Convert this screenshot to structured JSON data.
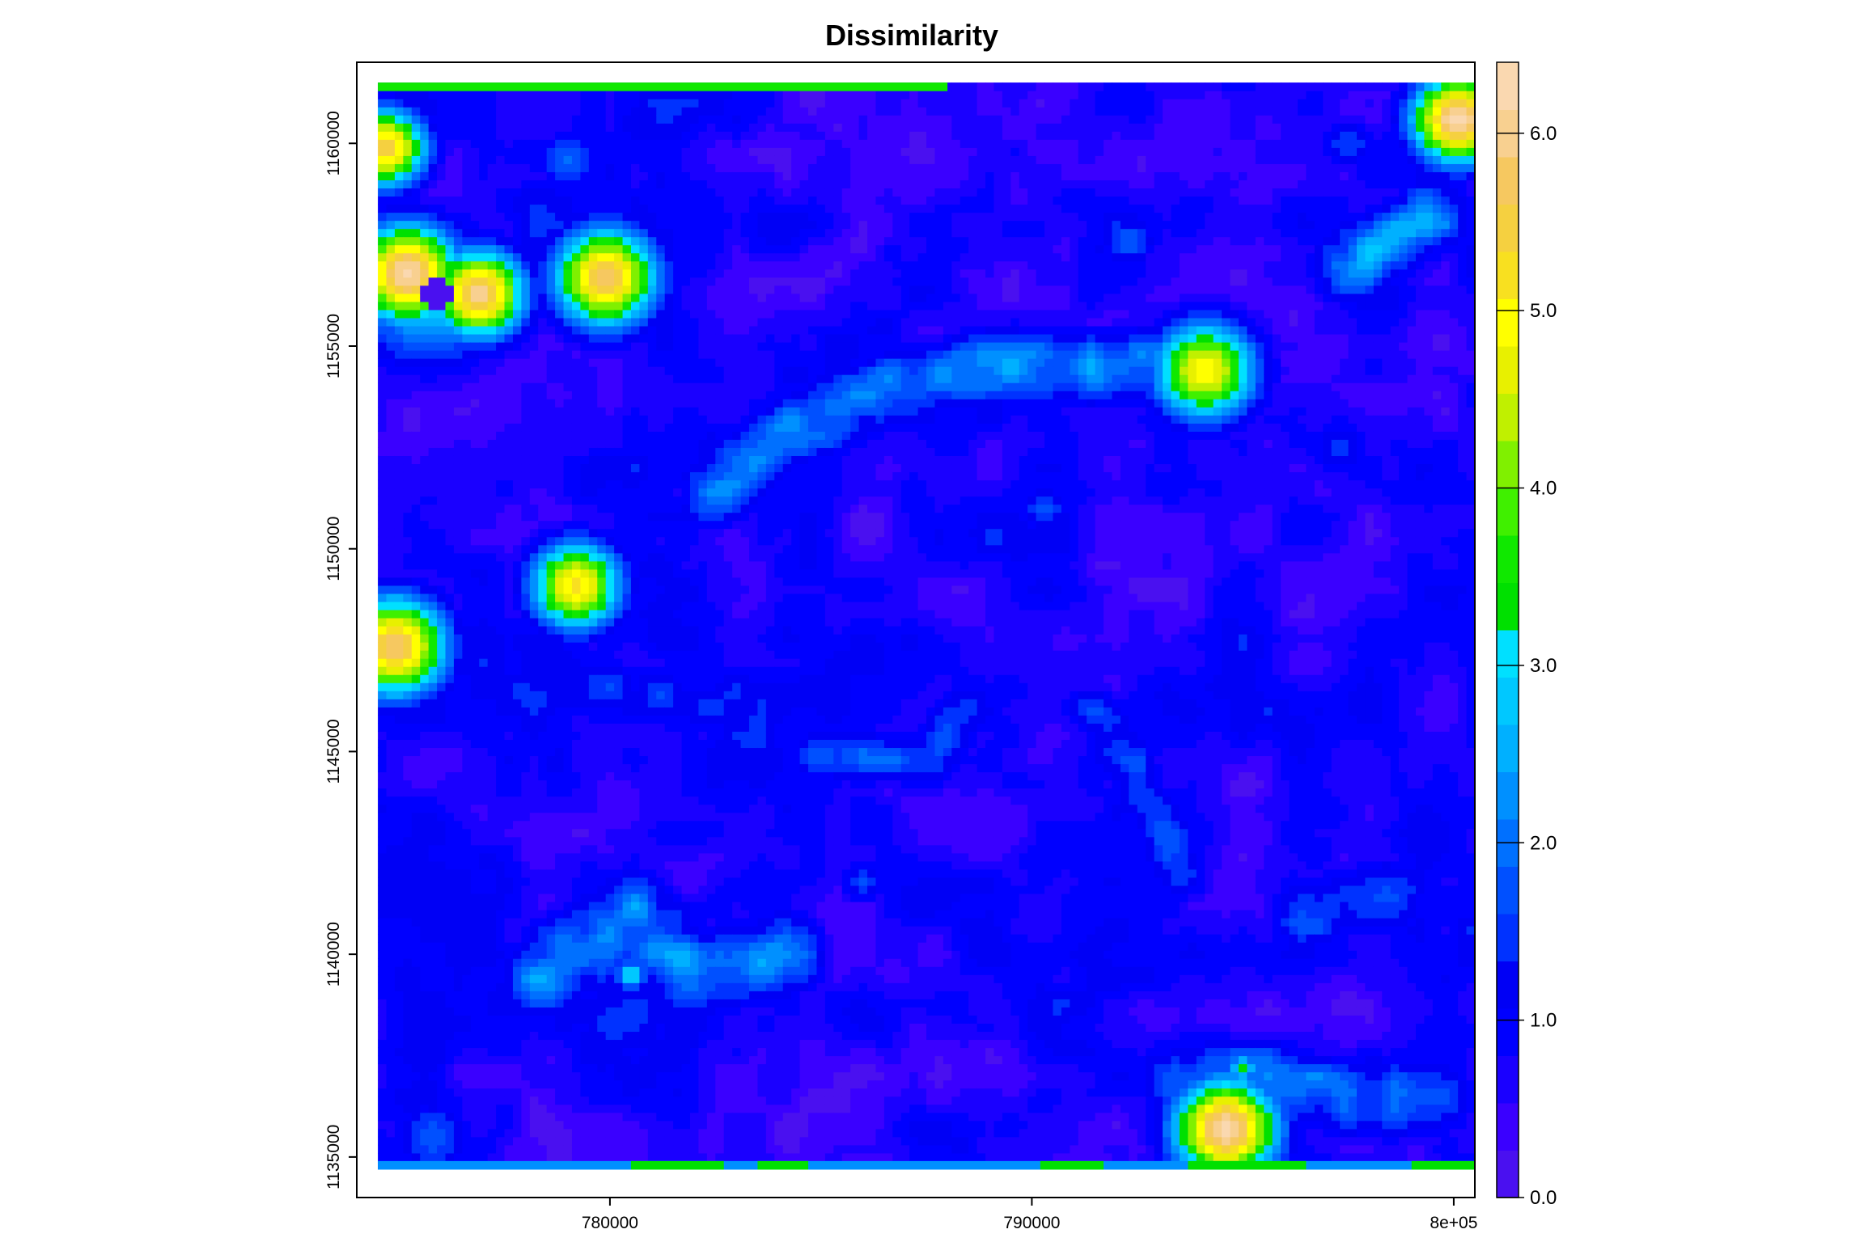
{
  "chart_data": {
    "type": "heatmap",
    "title": "Dissimilarity",
    "xlabel": "",
    "ylabel": "",
    "x_range": [
      774000,
      800500
    ],
    "y_range": [
      1134000,
      1162000
    ],
    "raster_extent": {
      "x": [
        774500,
        800500
      ],
      "y": [
        1134700,
        1161500
      ]
    },
    "x_ticks": [
      {
        "value": 780000,
        "label": "780000"
      },
      {
        "value": 790000,
        "label": "790000"
      },
      {
        "value": 800000,
        "label": "8e+05"
      }
    ],
    "y_ticks": [
      {
        "value": 1135000,
        "label": "1135000"
      },
      {
        "value": 1140000,
        "label": "1140000"
      },
      {
        "value": 1145000,
        "label": "1145000"
      },
      {
        "value": 1150000,
        "label": "1150000"
      },
      {
        "value": 1155000,
        "label": "1155000"
      },
      {
        "value": 1160000,
        "label": "1160000"
      }
    ],
    "colorbar": {
      "range": [
        0.0,
        6.4
      ],
      "ticks": [
        {
          "value": 0.0,
          "label": "0.0"
        },
        {
          "value": 1.0,
          "label": "1.0"
        },
        {
          "value": 2.0,
          "label": "2.0"
        },
        {
          "value": 3.0,
          "label": "3.0"
        },
        {
          "value": 4.0,
          "label": "4.0"
        },
        {
          "value": 5.0,
          "label": "5.0"
        },
        {
          "value": 6.0,
          "label": "6.0"
        }
      ],
      "colors": [
        "#4a10f0",
        "#3a00ff",
        "#1a00ff",
        "#0000ff",
        "#0000f5",
        "#0032ff",
        "#0050ff",
        "#0070ff",
        "#0090ff",
        "#00b0ff",
        "#00c8ff",
        "#00e0ff",
        "#00e000",
        "#10e800",
        "#40f000",
        "#80f000",
        "#c0f000",
        "#e8f000",
        "#ffff00",
        "#f8e020",
        "#f5d040",
        "#f6c860",
        "#f8d090",
        "#fad8b0"
      ]
    },
    "background_value": 0.75,
    "features": [
      {
        "kind": "hotspot",
        "x": 775200,
        "y": 1156800,
        "peak": 6.2,
        "radius": 900
      },
      {
        "kind": "hotspot",
        "x": 776900,
        "y": 1156300,
        "peak": 6.0,
        "radius": 800
      },
      {
        "kind": "hotspot",
        "x": 779900,
        "y": 1156700,
        "peak": 5.8,
        "radius": 900
      },
      {
        "kind": "hotspot",
        "x": 774700,
        "y": 1159900,
        "peak": 5.6,
        "radius": 700
      },
      {
        "kind": "hotspot",
        "x": 774900,
        "y": 1147600,
        "peak": 5.9,
        "radius": 900
      },
      {
        "kind": "hotspot",
        "x": 779200,
        "y": 1149100,
        "peak": 5.2,
        "radius": 800
      },
      {
        "kind": "hotspot",
        "x": 794100,
        "y": 1154400,
        "peak": 5.0,
        "radius": 900
      },
      {
        "kind": "hotspot",
        "x": 800100,
        "y": 1160600,
        "peak": 6.3,
        "radius": 800
      },
      {
        "kind": "hotspot",
        "x": 794600,
        "y": 1135700,
        "peak": 6.3,
        "radius": 900
      },
      {
        "kind": "hotspot",
        "x": 775700,
        "y": 1156300,
        "peak": 3.0,
        "radius": 1300
      },
      {
        "kind": "lowspot",
        "x": 775900,
        "y": 1156300,
        "value": 0.2,
        "radius": 420
      },
      {
        "kind": "ridge",
        "points": [
          [
            782500,
            1151500
          ],
          [
            784500,
            1153000
          ],
          [
            786500,
            1154000
          ],
          [
            789000,
            1154500
          ],
          [
            792000,
            1154500
          ],
          [
            793500,
            1154700
          ]
        ],
        "peak": 2.1,
        "width": 700
      },
      {
        "kind": "ridge",
        "points": [
          [
            797500,
            1157000
          ],
          [
            799500,
            1158200
          ]
        ],
        "peak": 2.3,
        "width": 700
      },
      {
        "kind": "ridge",
        "points": [
          [
            778500,
            1139500
          ],
          [
            780500,
            1141000
          ],
          [
            782000,
            1139500
          ],
          [
            784000,
            1140000
          ]
        ],
        "peak": 2.2,
        "width": 800
      },
      {
        "kind": "ridge",
        "points": [
          [
            793500,
            1137000
          ],
          [
            795500,
            1137000
          ],
          [
            797500,
            1136500
          ],
          [
            799500,
            1136500
          ]
        ],
        "peak": 1.9,
        "width": 800
      },
      {
        "kind": "ridge",
        "points": [
          [
            785000,
            1145000
          ],
          [
            787500,
            1144800
          ],
          [
            788500,
            1146000
          ]
        ],
        "peak": 1.6,
        "width": 600
      },
      {
        "kind": "ridge",
        "points": [
          [
            791500,
            1146000
          ],
          [
            793000,
            1143500
          ],
          [
            793500,
            1142000
          ]
        ],
        "peak": 1.5,
        "width": 600
      },
      {
        "kind": "ridge",
        "points": [
          [
            796500,
            1141000
          ],
          [
            798500,
            1141500
          ]
        ],
        "peak": 1.7,
        "width": 700
      },
      {
        "kind": "ridge",
        "points": [
          [
            778000,
            1146500
          ],
          [
            781000,
            1146500
          ],
          [
            783000,
            1146000
          ]
        ],
        "peak": 1.4,
        "width": 700
      },
      {
        "kind": "hotspot",
        "x": 780500,
        "y": 1139500,
        "peak": 3.2,
        "radius": 300
      },
      {
        "kind": "hotspot",
        "x": 795000,
        "y": 1137200,
        "peak": 3.2,
        "radius": 300
      },
      {
        "kind": "hotspot",
        "x": 779000,
        "y": 1159600,
        "peak": 2.0,
        "radius": 500
      },
      {
        "kind": "hotspot",
        "x": 792300,
        "y": 1157600,
        "peak": 1.8,
        "radius": 500
      },
      {
        "kind": "hotspot",
        "x": 797300,
        "y": 1152500,
        "peak": 1.6,
        "radius": 500
      },
      {
        "kind": "hotspot",
        "x": 786000,
        "y": 1141800,
        "peak": 1.6,
        "radius": 400
      },
      {
        "kind": "hotspot",
        "x": 775800,
        "y": 1135500,
        "peak": 1.8,
        "radius": 700
      },
      {
        "kind": "hotspot",
        "x": 790300,
        "y": 1151000,
        "peak": 1.7,
        "radius": 500
      },
      {
        "kind": "hotspot",
        "x": 797500,
        "y": 1160000,
        "peak": 1.6,
        "radius": 500
      }
    ],
    "edge_strips": [
      {
        "side": "top",
        "x_from": 774500,
        "x_to": 788000,
        "value": 3.6
      },
      {
        "side": "bottom",
        "x_from": 774500,
        "x_to": 800500,
        "value": 2.3
      },
      {
        "side": "bottom",
        "x_from": 780500,
        "x_to": 782700,
        "value": 3.2
      },
      {
        "side": "bottom",
        "x_from": 783500,
        "x_to": 784700,
        "value": 3.2
      },
      {
        "side": "bottom",
        "x_from": 790200,
        "x_to": 791700,
        "value": 3.2
      },
      {
        "side": "bottom",
        "x_from": 793700,
        "x_to": 796500,
        "value": 3.2
      },
      {
        "side": "bottom",
        "x_from": 799000,
        "x_to": 800500,
        "value": 3.2
      }
    ]
  }
}
